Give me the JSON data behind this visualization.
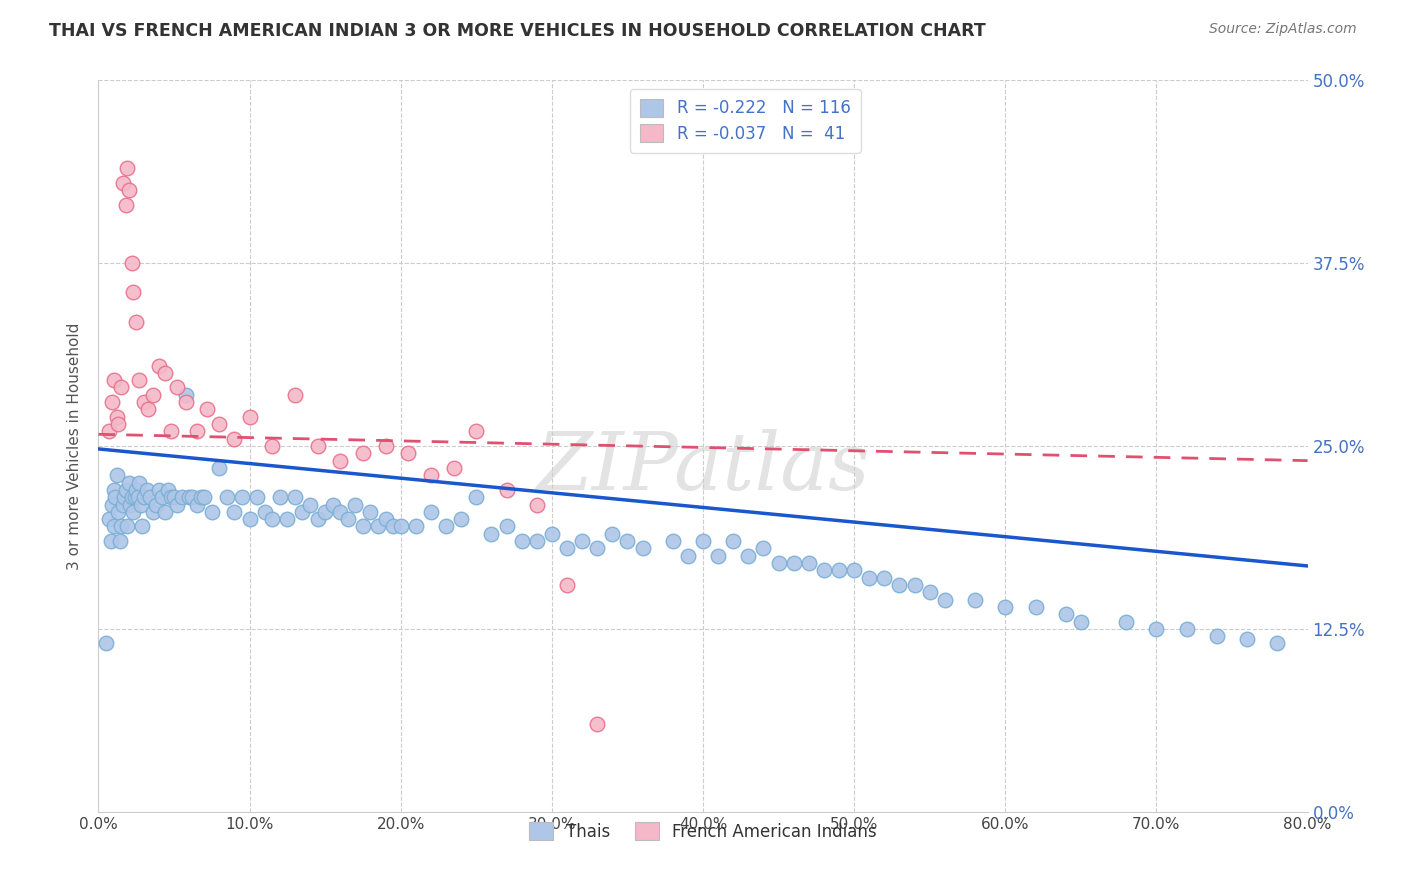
{
  "title": "THAI VS FRENCH AMERICAN INDIAN 3 OR MORE VEHICLES IN HOUSEHOLD CORRELATION CHART",
  "source": "Source: ZipAtlas.com",
  "xlabel_ticks": [
    "0.0%",
    "",
    "10.0%",
    "",
    "20.0%",
    "",
    "30.0%",
    "",
    "40.0%",
    "",
    "50.0%",
    "",
    "60.0%",
    "",
    "70.0%",
    "",
    "80.0%"
  ],
  "ylabel_ticks": [
    "50.0%",
    "37.5%",
    "25.0%",
    "12.5%",
    "0.0%"
  ],
  "ylabel_label": "3 or more Vehicles in Household",
  "legend_labels": [
    "Thais",
    "French American Indians"
  ],
  "legend_R": [
    -0.222,
    -0.037
  ],
  "legend_N": [
    116,
    41
  ],
  "xlim": [
    0.0,
    0.8
  ],
  "ylim": [
    0.0,
    0.5
  ],
  "scatter_blue": {
    "color": "#aec6e8",
    "edge_color": "#7aafd4",
    "x": [
      0.005,
      0.007,
      0.008,
      0.009,
      0.01,
      0.01,
      0.011,
      0.012,
      0.013,
      0.014,
      0.015,
      0.016,
      0.017,
      0.018,
      0.019,
      0.02,
      0.021,
      0.022,
      0.023,
      0.024,
      0.025,
      0.026,
      0.027,
      0.028,
      0.029,
      0.03,
      0.032,
      0.034,
      0.036,
      0.038,
      0.04,
      0.042,
      0.044,
      0.046,
      0.048,
      0.05,
      0.052,
      0.055,
      0.058,
      0.06,
      0.062,
      0.065,
      0.068,
      0.07,
      0.075,
      0.08,
      0.085,
      0.09,
      0.095,
      0.1,
      0.105,
      0.11,
      0.115,
      0.12,
      0.125,
      0.13,
      0.135,
      0.14,
      0.145,
      0.15,
      0.155,
      0.16,
      0.165,
      0.17,
      0.175,
      0.18,
      0.185,
      0.19,
      0.195,
      0.2,
      0.21,
      0.22,
      0.23,
      0.24,
      0.25,
      0.26,
      0.27,
      0.28,
      0.29,
      0.3,
      0.31,
      0.32,
      0.33,
      0.34,
      0.35,
      0.36,
      0.38,
      0.39,
      0.4,
      0.41,
      0.42,
      0.43,
      0.44,
      0.45,
      0.46,
      0.47,
      0.48,
      0.49,
      0.5,
      0.51,
      0.52,
      0.53,
      0.54,
      0.55,
      0.56,
      0.58,
      0.6,
      0.62,
      0.64,
      0.65,
      0.68,
      0.7,
      0.72,
      0.74,
      0.76,
      0.78
    ],
    "y": [
      0.115,
      0.2,
      0.185,
      0.21,
      0.22,
      0.195,
      0.215,
      0.23,
      0.205,
      0.185,
      0.195,
      0.21,
      0.215,
      0.22,
      0.195,
      0.225,
      0.21,
      0.215,
      0.205,
      0.215,
      0.22,
      0.215,
      0.225,
      0.21,
      0.195,
      0.215,
      0.22,
      0.215,
      0.205,
      0.21,
      0.22,
      0.215,
      0.205,
      0.22,
      0.215,
      0.215,
      0.21,
      0.215,
      0.285,
      0.215,
      0.215,
      0.21,
      0.215,
      0.215,
      0.205,
      0.235,
      0.215,
      0.205,
      0.215,
      0.2,
      0.215,
      0.205,
      0.2,
      0.215,
      0.2,
      0.215,
      0.205,
      0.21,
      0.2,
      0.205,
      0.21,
      0.205,
      0.2,
      0.21,
      0.195,
      0.205,
      0.195,
      0.2,
      0.195,
      0.195,
      0.195,
      0.205,
      0.195,
      0.2,
      0.215,
      0.19,
      0.195,
      0.185,
      0.185,
      0.19,
      0.18,
      0.185,
      0.18,
      0.19,
      0.185,
      0.18,
      0.185,
      0.175,
      0.185,
      0.175,
      0.185,
      0.175,
      0.18,
      0.17,
      0.17,
      0.17,
      0.165,
      0.165,
      0.165,
      0.16,
      0.16,
      0.155,
      0.155,
      0.15,
      0.145,
      0.145,
      0.14,
      0.14,
      0.135,
      0.13,
      0.13,
      0.125,
      0.125,
      0.12,
      0.118,
      0.115
    ]
  },
  "scatter_pink": {
    "color": "#f4b8c8",
    "edge_color": "#e8708a",
    "x": [
      0.007,
      0.009,
      0.01,
      0.012,
      0.013,
      0.015,
      0.016,
      0.018,
      0.019,
      0.02,
      0.022,
      0.023,
      0.025,
      0.027,
      0.03,
      0.033,
      0.036,
      0.04,
      0.044,
      0.048,
      0.052,
      0.058,
      0.065,
      0.072,
      0.08,
      0.09,
      0.1,
      0.115,
      0.13,
      0.145,
      0.16,
      0.175,
      0.19,
      0.205,
      0.22,
      0.235,
      0.25,
      0.27,
      0.29,
      0.31,
      0.33
    ],
    "y": [
      0.26,
      0.28,
      0.295,
      0.27,
      0.265,
      0.29,
      0.43,
      0.415,
      0.44,
      0.425,
      0.375,
      0.355,
      0.335,
      0.295,
      0.28,
      0.275,
      0.285,
      0.305,
      0.3,
      0.26,
      0.29,
      0.28,
      0.26,
      0.275,
      0.265,
      0.255,
      0.27,
      0.25,
      0.285,
      0.25,
      0.24,
      0.245,
      0.25,
      0.245,
      0.23,
      0.235,
      0.26,
      0.22,
      0.21,
      0.155,
      0.06
    ]
  },
  "trend_blue": {
    "color": "#1a56cc",
    "x_start": 0.0,
    "x_end": 0.8,
    "y_start": 0.248,
    "y_end": 0.168
  },
  "trend_pink": {
    "color": "#e05070",
    "x_start": 0.0,
    "x_end": 0.8,
    "y_start": 0.258,
    "y_end": 0.24
  },
  "watermark": "ZIPatlas",
  "background_color": "#ffffff",
  "grid_color": "#cccccc",
  "title_color": "#333333",
  "axis_label_color": "#555555",
  "right_tick_color": "#4472c4"
}
